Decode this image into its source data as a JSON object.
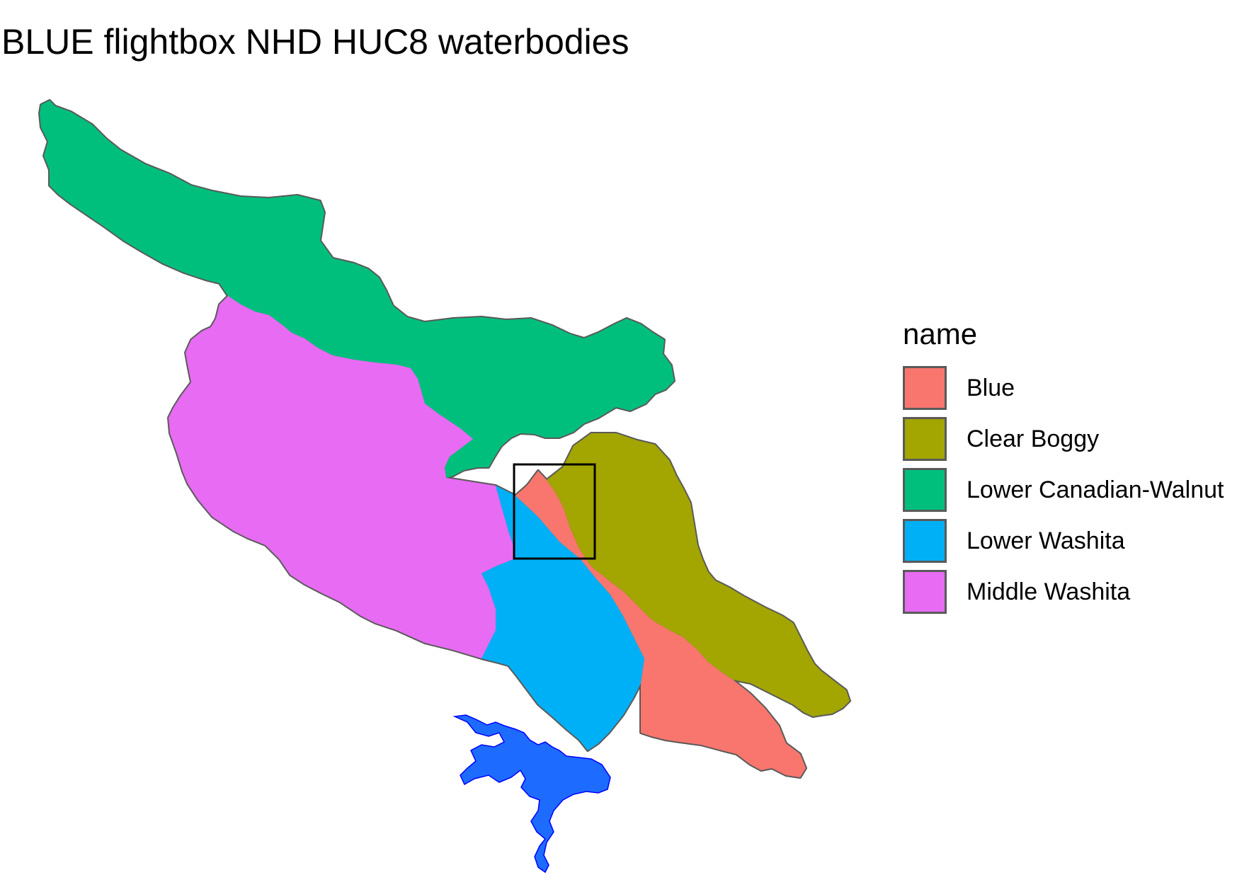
{
  "title": "BLUE flightbox NHD HUC8 waterbodies",
  "legend": {
    "title": "name",
    "items": [
      {
        "label": "Blue",
        "color": "#F8766D"
      },
      {
        "label": "Clear Boggy",
        "color": "#A3A500"
      },
      {
        "label": "Lower Canadian-Walnut",
        "color": "#00BF7D"
      },
      {
        "label": "Lower Washita",
        "color": "#00B0F6"
      },
      {
        "label": "Middle Washita",
        "color": "#E76BF3"
      }
    ]
  },
  "colors": {
    "border": "#5a5a5a",
    "waterbody": "#0000ff",
    "reservoir": "#1e6cff",
    "flightbox": "#000000"
  }
}
